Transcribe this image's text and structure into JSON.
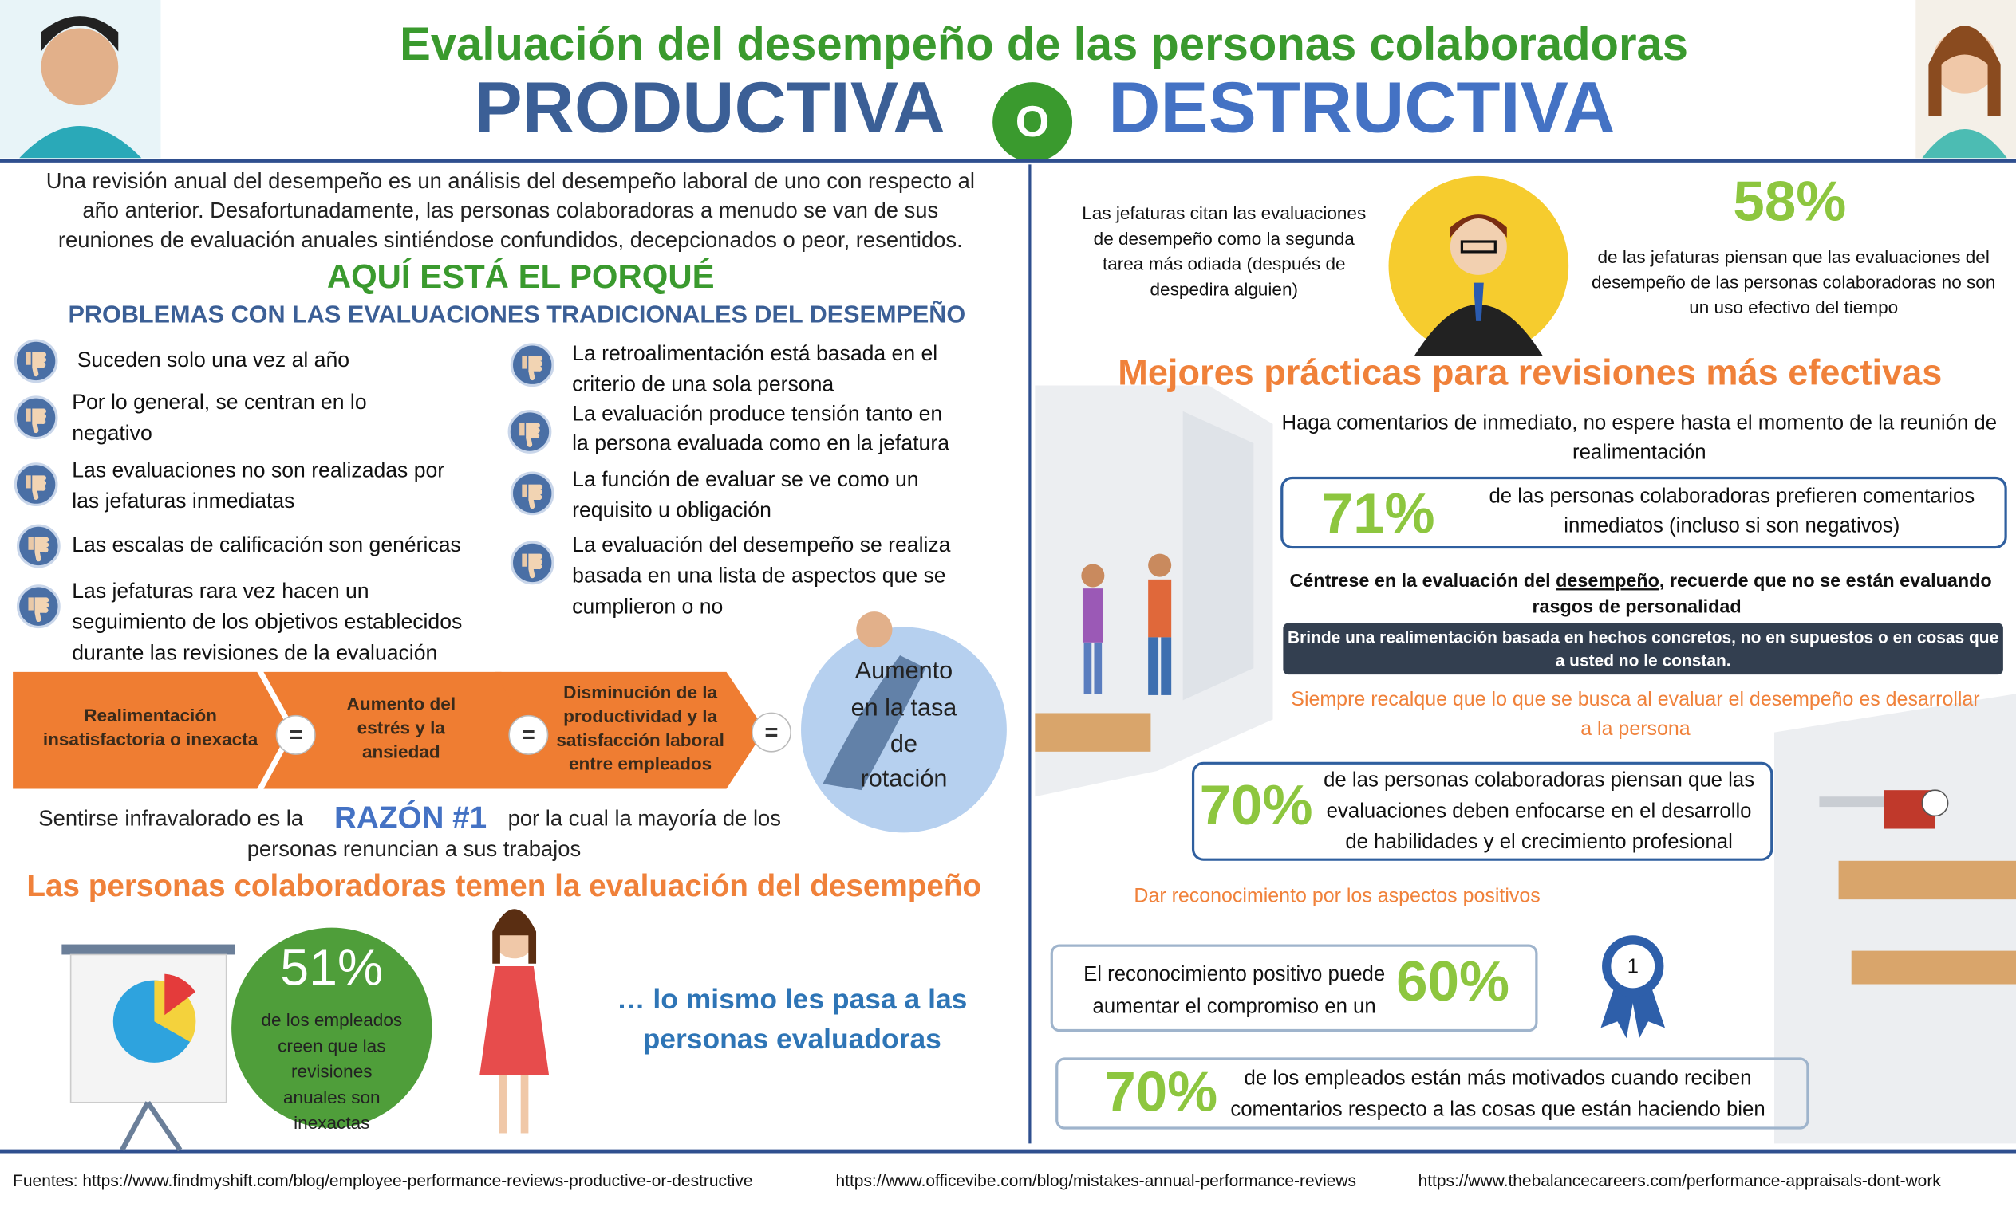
{
  "header": {
    "title": "Evaluación del desempeño de las personas colaboradoras",
    "left_word": "PRODUCTIVA",
    "connector": "O",
    "right_word": "DESTRUCTIVA"
  },
  "intro": {
    "lines": [
      "Una revisión anual del desempeño es un análisis del desempeño laboral de uno con respecto al",
      "año anterior. Desafortunadamente, las personas colaboradoras a menudo se van de sus",
      "reuniones de evaluación anuales sintiéndose confundidos, decepcionados o peor, resentidos."
    ]
  },
  "why": {
    "heading": "AQUÍ ESTÁ EL PORQUÉ",
    "subheading": "PROBLEMAS CON LAS EVALUACIONES TRADICIONALES DEL DESEMPEÑO"
  },
  "problems": {
    "left": [
      [
        "Suceden solo una vez al año"
      ],
      [
        "Por lo general, se centran en lo",
        "negativo"
      ],
      [
        "Las evaluaciones no son realizadas por",
        "las jefaturas inmediatas"
      ],
      [
        "Las escalas de calificación son genéricas"
      ],
      [
        "Las jefaturas rara vez hacen un",
        "seguimiento de los objetivos establecidos",
        "durante las revisiones de la evaluación"
      ]
    ],
    "right": [
      [
        "La retroalimentación está basada en el",
        "criterio de una sola persona"
      ],
      [
        "La evaluación produce tensión tanto en",
        "la persona evaluada como en la jefatura"
      ],
      [
        "La función de evaluar se ve como un",
        "requisito u obligación"
      ],
      [
        "La evaluación del desempeño se realiza",
        "basada en una lista de aspectos que se",
        "cumplieron o no"
      ]
    ]
  },
  "chain": {
    "steps": [
      [
        "Realimentación",
        "insatisfactoria o inexacta"
      ],
      [
        "Aumento del",
        "estrés y la",
        "ansiedad"
      ],
      [
        "Disminución de la",
        "productividad y la",
        "satisfacción laboral",
        "entre empleados"
      ]
    ],
    "separators": [
      "=",
      "=",
      "="
    ],
    "result": [
      "Aumento",
      "en la tasa",
      "de",
      "rotación"
    ]
  },
  "reason": {
    "before": "Sentirse infravalorado  es la",
    "highlight": "RAZÓN #1",
    "after": "por la cual la mayoría de los",
    "line2": "personas renuncian a sus trabajos"
  },
  "fear": {
    "heading": "Las personas colaboradoras temen la evaluación del desempeño",
    "stat": "51%",
    "stat_lines": [
      "de los empleados",
      "creen que las",
      "revisiones",
      "anuales son",
      "inexactas"
    ],
    "evaluators": [
      "… lo mismo les pasa a las",
      "personas evaluadoras"
    ]
  },
  "hated": {
    "lines": [
      "Las jefaturas citan las evaluaciones",
      "de desempeño como la segunda",
      "tarea más odiada (después de",
      "despedira alguien)"
    ]
  },
  "stat58": {
    "value": "58%",
    "lines": [
      "de las jefaturas piensan que las evaluaciones del",
      "desempeño de las personas  colaboradoras no son",
      "un uso efectivo del tiempo"
    ]
  },
  "best": {
    "heading": "Mejores prácticas para revisiones más efectivas",
    "immediate": [
      "Haga comentarios de inmediato, no espere hasta el momento de la reunión de",
      "realimentación"
    ],
    "stat71": {
      "value": "71%",
      "lines": [
        "de las personas colaboradoras prefieren comentarios",
        "inmediatos (incluso si son negativos)"
      ]
    },
    "focus": {
      "before": "Céntrese en la evaluación del ",
      "underlined": "desempeño",
      "after": ", recuerde que no se están evaluando",
      "line2": "rasgos de personalidad"
    },
    "facts": [
      "Brinde una realimentación basada en hechos concretos, no en supuestos o en cosas que",
      "a usted no le constan."
    ],
    "develop": [
      "Siempre recalque que lo que se busca al evaluar el desempeño es desarrollar",
      "a la persona"
    ],
    "stat70a": {
      "value": "70%",
      "lines": [
        "de las personas colaboradoras piensan que las",
        "evaluaciones deben enfocarse en el desarrollo",
        "de habilidades y el crecimiento profesional"
      ]
    },
    "recognize": "Dar reconocimiento por los aspectos positivos",
    "stat60": {
      "value": "60%",
      "lines": [
        "El reconocimiento positivo puede",
        "aumentar el compromiso en un"
      ]
    },
    "medal": "1",
    "stat70b": {
      "value": "70%",
      "lines": [
        "de los empleados están más motivados cuando reciben",
        "comentarios respecto a las cosas que están haciendo bien"
      ]
    }
  },
  "footer": {
    "sources": [
      "Fuentes: https://www.findmyshift.com/blog/employee-performance-reviews-productive-or-destructive",
      "https://www.officevibe.com/blog/mistakes-annual-performance-reviews",
      "https://www.thebalancecareers.com/performance-appraisals-dont-work"
    ]
  }
}
